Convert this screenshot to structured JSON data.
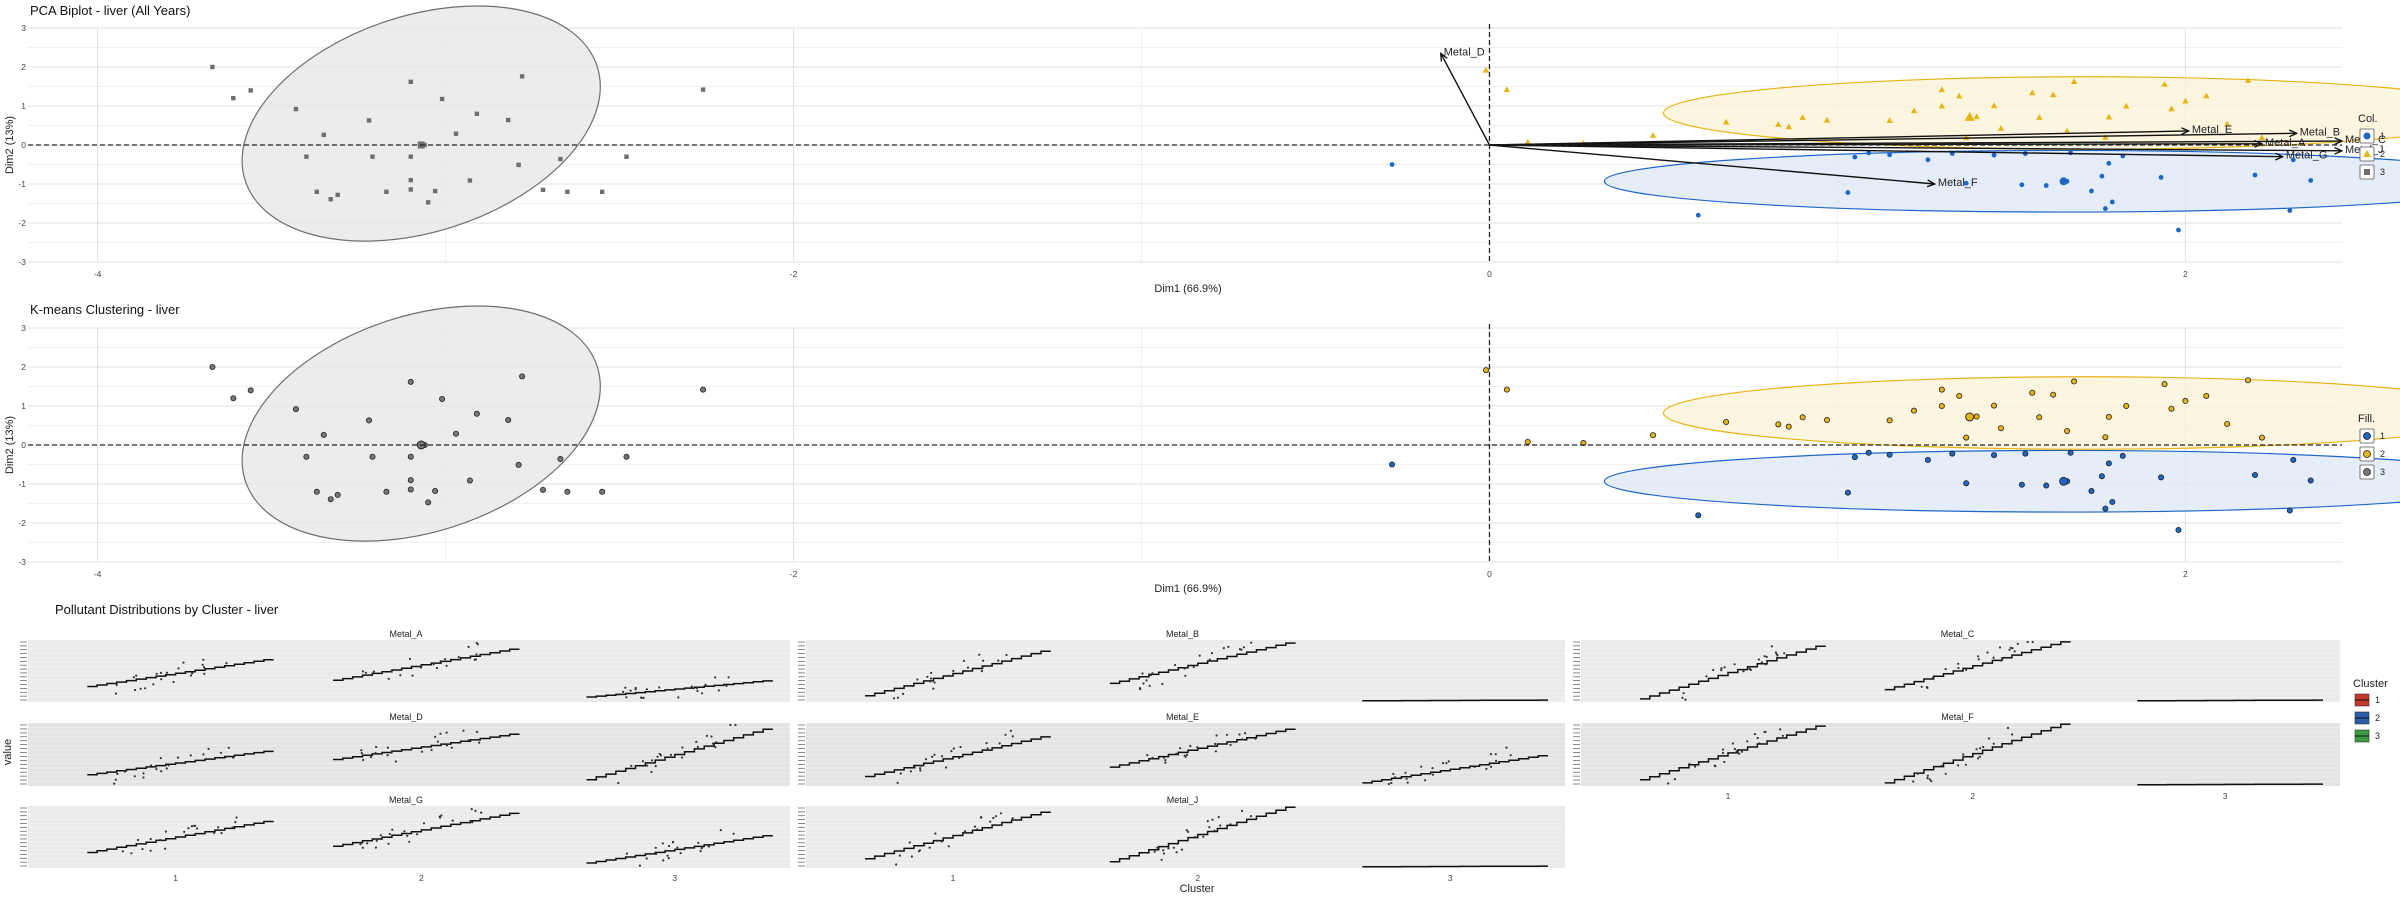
{
  "chart_data": [
    {
      "type": "scatter",
      "title": "PCA Biplot - liver (All Years)",
      "xlabel": "Dim1 (66.9%)",
      "ylabel": "Dim2 (13%)",
      "xlim": [
        -4.2,
        2.45
      ],
      "ylim": [
        -3,
        3
      ],
      "x_ticks": [
        "-4",
        "-2",
        "0",
        "2"
      ],
      "y_ticks": [
        "3",
        "2",
        "1",
        "0",
        "-1",
        "-2",
        "-3"
      ],
      "grid": true,
      "legend": {
        "title": "Col.",
        "position": "right",
        "entries": [
          "1",
          "2",
          "3"
        ]
      },
      "cluster_colors": {
        "1": "#1f66c9",
        "2": "#e7b416",
        "3": "#6e6e6e"
      },
      "series": [
        {
          "name": "1",
          "points": [
            [
              -0.28,
              -0.5
            ],
            [
              0.6,
              -1.8
            ],
            [
              1.03,
              -1.22
            ],
            [
              1.05,
              -0.31
            ],
            [
              1.09,
              -0.2
            ],
            [
              1.15,
              -0.25
            ],
            [
              1.26,
              -0.38
            ],
            [
              1.33,
              -0.22
            ],
            [
              1.37,
              -0.98
            ],
            [
              1.45,
              -0.26
            ],
            [
              1.53,
              -1.02
            ],
            [
              1.54,
              -0.22
            ],
            [
              1.6,
              -1.04
            ],
            [
              1.65,
              -0.95
            ],
            [
              1.67,
              -0.2
            ],
            [
              1.73,
              -1.18
            ],
            [
              1.76,
              -0.8
            ],
            [
              1.77,
              -1.63
            ],
            [
              1.78,
              -0.47
            ],
            [
              1.82,
              -0.28
            ],
            [
              1.93,
              -0.83
            ],
            [
              1.98,
              -2.18
            ],
            [
              2.2,
              -0.77
            ],
            [
              2.3,
              -1.68
            ],
            [
              2.36,
              -0.91
            ],
            [
              2.31,
              -0.38
            ],
            [
              1.79,
              -1.46
            ],
            [
              1.66,
              -0.93
            ]
          ],
          "centroid": [
            1.65,
            -0.93
          ]
        },
        {
          "name": "2",
          "points": [
            [
              -0.01,
              1.92
            ],
            [
              0.05,
              1.42
            ],
            [
              0.11,
              0.08
            ],
            [
              0.27,
              0.05
            ],
            [
              0.68,
              0.59
            ],
            [
              0.83,
              0.53
            ],
            [
              0.9,
              0.71
            ],
            [
              0.97,
              0.64
            ],
            [
              1.15,
              0.63
            ],
            [
              1.22,
              0.88
            ],
            [
              1.3,
              1.0
            ],
            [
              1.3,
              1.42
            ],
            [
              1.35,
              1.26
            ],
            [
              1.4,
              0.73
            ],
            [
              1.45,
              1.01
            ],
            [
              1.47,
              0.43
            ],
            [
              1.56,
              1.34
            ],
            [
              1.58,
              0.71
            ],
            [
              1.62,
              1.29
            ],
            [
              1.66,
              0.36
            ],
            [
              1.68,
              1.63
            ],
            [
              1.78,
              0.72
            ],
            [
              1.83,
              1.0
            ],
            [
              1.94,
              1.56
            ],
            [
              1.96,
              0.93
            ],
            [
              2.0,
              1.13
            ],
            [
              2.06,
              1.26
            ],
            [
              2.12,
              0.54
            ],
            [
              2.18,
              1.66
            ],
            [
              2.22,
              0.19
            ],
            [
              0.47,
              0.25
            ],
            [
              0.86,
              0.47
            ],
            [
              1.77,
              0.2
            ],
            [
              1.37,
              0.19
            ]
          ],
          "centroid": [
            1.38,
            0.72
          ]
        },
        {
          "name": "3",
          "points": [
            [
              -3.67,
              2.0
            ],
            [
              -3.61,
              1.2
            ],
            [
              -3.56,
              1.4
            ],
            [
              -3.43,
              0.92
            ],
            [
              -3.35,
              0.26
            ],
            [
              -3.4,
              -0.3
            ],
            [
              -3.37,
              -1.2
            ],
            [
              -3.33,
              -1.39
            ],
            [
              -3.31,
              -1.28
            ],
            [
              -3.22,
              0.63
            ],
            [
              -3.21,
              -0.3
            ],
            [
              -3.17,
              -1.2
            ],
            [
              -3.1,
              -0.9
            ],
            [
              -3.1,
              1.62
            ],
            [
              -3.06,
              0.0
            ],
            [
              -3.05,
              -1.47
            ],
            [
              -3.03,
              -1.18
            ],
            [
              -3.01,
              1.18
            ],
            [
              -2.97,
              0.29
            ],
            [
              -2.93,
              -0.91
            ],
            [
              -2.91,
              0.8
            ],
            [
              -2.82,
              0.64
            ],
            [
              -2.79,
              -0.51
            ],
            [
              -2.78,
              1.76
            ],
            [
              -2.72,
              -1.15
            ],
            [
              -2.67,
              -0.36
            ],
            [
              -2.65,
              -1.2
            ],
            [
              -2.55,
              -1.2
            ],
            [
              -2.48,
              -0.3
            ],
            [
              -2.26,
              1.42
            ],
            [
              -3.1,
              -0.3
            ],
            [
              -3.1,
              -1.14
            ]
          ],
          "centroid": [
            -3.07,
            0.0
          ]
        }
      ],
      "ellipses": [
        {
          "cluster": "1",
          "center": [
            1.65,
            -0.93
          ],
          "rx": 1.32,
          "ry": 0.79,
          "angle": 0
        },
        {
          "cluster": "2",
          "center": [
            1.71,
            0.82
          ],
          "rx": 1.21,
          "ry": 0.93,
          "angle": 0
        },
        {
          "cluster": "3",
          "center": [
            -3.07,
            0.55
          ],
          "rx": 0.8,
          "ry": 2.8,
          "angle": -18
        }
      ],
      "arrows": [
        {
          "name": "Metal_D",
          "x": -0.14,
          "y": 2.35
        },
        {
          "name": "Metal_E",
          "x": 2.01,
          "y": 0.36
        },
        {
          "name": "Metal_B",
          "x": 2.32,
          "y": 0.3
        },
        {
          "name": "Metal_C",
          "x": 2.45,
          "y": 0.1
        },
        {
          "name": "Metal_A",
          "x": 2.22,
          "y": 0.03
        },
        {
          "name": "Metal_J",
          "x": 2.45,
          "y": -0.15
        },
        {
          "name": "Metal_G",
          "x": 2.28,
          "y": -0.3
        },
        {
          "name": "Metal_F",
          "x": 1.28,
          "y": -1.0
        }
      ]
    },
    {
      "type": "scatter",
      "title": "K-means Clustering - liver",
      "xlabel": "Dim1 (66.9%)",
      "ylabel": "Dim2 (13%)",
      "xlim": [
        -4.2,
        2.45
      ],
      "ylim": [
        -3,
        3
      ],
      "x_ticks": [
        "-4",
        "-2",
        "0",
        "2"
      ],
      "y_ticks": [
        "3",
        "2",
        "1",
        "0",
        "-1",
        "-2",
        "-3"
      ],
      "grid": true,
      "legend": {
        "title": "Fill.",
        "position": "right",
        "entries": [
          "1",
          "2",
          "3"
        ]
      },
      "note": "Same point set as the PCA biplot, filled by cluster, without loading arrows"
    },
    {
      "type": "scatter",
      "title": "Pollutant Distributions by Cluster - liver",
      "xlabel": "Cluster",
      "ylabel": "value",
      "x_ticks": [
        "1",
        "2",
        "3"
      ],
      "legend": {
        "title": "Cluster",
        "position": "right",
        "entries": [
          "1",
          "2",
          "3"
        ],
        "colors": [
          "#c0392b",
          "#2e5da8",
          "#3d9a40"
        ]
      },
      "facets": [
        {
          "name": "Metal_A",
          "clusters": [
            {
              "cluster": "1",
              "y": [
                0.25,
                0.68
              ]
            },
            {
              "cluster": "2",
              "y": [
                0.35,
                0.85
              ]
            },
            {
              "cluster": "3",
              "y": [
                0.08,
                0.34
              ]
            }
          ]
        },
        {
          "name": "Metal_B",
          "clusters": [
            {
              "cluster": "1",
              "y": [
                0.1,
                0.82
              ]
            },
            {
              "cluster": "2",
              "y": [
                0.3,
                0.95
              ]
            },
            {
              "cluster": "3",
              "y": [
                0.02,
                0.03
              ]
            }
          ]
        },
        {
          "name": "Metal_C",
          "clusters": [
            {
              "cluster": "1",
              "y": [
                0.05,
                0.9
              ]
            },
            {
              "cluster": "2",
              "y": [
                0.2,
                0.97
              ]
            },
            {
              "cluster": "3",
              "y": [
                0.02,
                0.03
              ]
            }
          ]
        },
        {
          "name": "Metal_D",
          "clusters": [
            {
              "cluster": "1",
              "y": [
                0.18,
                0.55
              ]
            },
            {
              "cluster": "2",
              "y": [
                0.42,
                0.82
              ]
            },
            {
              "cluster": "3",
              "y": [
                0.1,
                0.9
              ]
            }
          ]
        },
        {
          "name": "Metal_E",
          "clusters": [
            {
              "cluster": "1",
              "y": [
                0.15,
                0.78
              ]
            },
            {
              "cluster": "2",
              "y": [
                0.3,
                0.9
              ]
            },
            {
              "cluster": "3",
              "y": [
                0.05,
                0.48
              ]
            }
          ]
        },
        {
          "name": "Metal_F",
          "clusters": [
            {
              "cluster": "1",
              "y": [
                0.1,
                0.95
              ]
            },
            {
              "cluster": "2",
              "y": [
                0.05,
                0.98
              ]
            },
            {
              "cluster": "3",
              "y": [
                0.02,
                0.03
              ]
            }
          ]
        },
        {
          "name": "Metal_G",
          "clusters": [
            {
              "cluster": "1",
              "y": [
                0.25,
                0.75
              ]
            },
            {
              "cluster": "2",
              "y": [
                0.35,
                0.88
              ]
            },
            {
              "cluster": "3",
              "y": [
                0.08,
                0.52
              ]
            }
          ]
        },
        {
          "name": "Metal_J",
          "clusters": [
            {
              "cluster": "1",
              "y": [
                0.15,
                0.9
              ]
            },
            {
              "cluster": "2",
              "y": [
                0.1,
                0.98
              ]
            },
            {
              "cluster": "3",
              "y": [
                0.02,
                0.03
              ]
            }
          ]
        }
      ]
    }
  ]
}
